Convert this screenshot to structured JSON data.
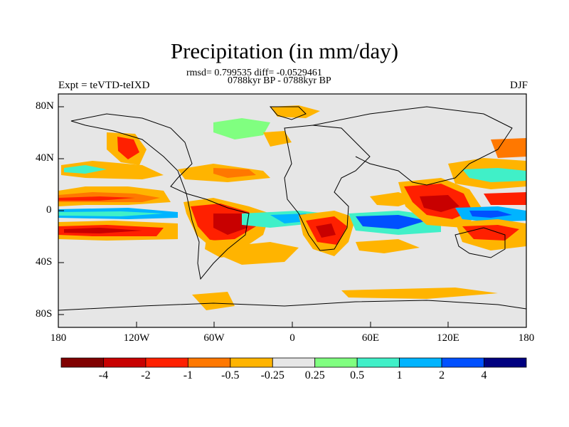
{
  "title": "Precipitation (in mm/day)",
  "stats_line": "rmsd= 0.799535 diff= -0.0529461",
  "period_line": "0788kyr BP - 0788kyr BP",
  "expt_label": "Expt = teVTD-teIXD",
  "season_label": "DJF",
  "axes": {
    "y_ticks": [
      "80N",
      "40N",
      "0",
      "40S",
      "80S"
    ],
    "x_ticks": [
      "180",
      "120W",
      "60W",
      "0",
      "60E",
      "120E",
      "180"
    ]
  },
  "colorbar": {
    "labels": [
      "-4",
      "-2",
      "-1",
      "-0.5",
      "-0.25",
      "0.25",
      "0.5",
      "1",
      "2",
      "4"
    ],
    "colors": [
      "#800000",
      "#c80000",
      "#ff2000",
      "#ff7800",
      "#ffb400",
      "#e6e6e6",
      "#80ff80",
      "#40f0c8",
      "#00b4ff",
      "#0050ff",
      "#000080"
    ]
  },
  "colors": {
    "background_map": "#e6e6e6",
    "coast": "#000000"
  }
}
